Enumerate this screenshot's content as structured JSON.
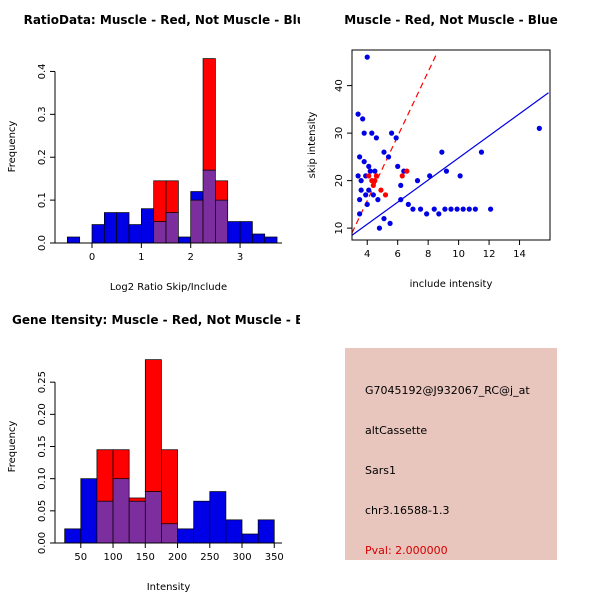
{
  "colors": {
    "blue": "#0000E6",
    "red": "#FF0000",
    "overlap": "#7D2E9E",
    "panel_bg": "#E8C5BD",
    "pval_text": "#D40000",
    "axis": "#000000",
    "background": "#FFFFFF"
  },
  "chart_data": [
    {
      "id": "ratio_hist",
      "type": "bar",
      "title": "RatioData: Muscle - Red, Not Muscle - Blue",
      "xlabel": "Log2 Ratio Skip/Include",
      "ylabel": "Frequency",
      "bin_start": -0.5,
      "bin_width": 0.25,
      "xlim": [
        -0.75,
        3.85
      ],
      "ylim": [
        0,
        0.45
      ],
      "xticks": [
        0,
        1,
        2,
        3
      ],
      "xticklabels": [
        "0",
        "1",
        "2",
        "3"
      ],
      "yticks": [
        0.0,
        0.1,
        0.2,
        0.3,
        0.4
      ],
      "yticklabels": [
        "0.0",
        "0.1",
        "0.2",
        "0.3",
        "0.4"
      ],
      "grid": false,
      "series": [
        {
          "name": "Not Muscle (blue)",
          "values": [
            0.014,
            0,
            0.043,
            0.071,
            0.071,
            0.043,
            0.08,
            0.05,
            0.071,
            0.014,
            0.12,
            0.17,
            0.1,
            0.05,
            0.05,
            0.021,
            0.014
          ]
        },
        {
          "name": "Muscle (red)",
          "values": [
            0,
            0,
            0,
            0,
            0,
            0,
            0,
            0.145,
            0.145,
            0,
            0.1,
            0.43,
            0.145,
            0,
            0,
            0,
            0
          ]
        }
      ]
    },
    {
      "id": "intensity_scatter",
      "type": "scatter",
      "title": "Muscle - Red, Not Muscle - Blue",
      "xlabel": "include intensity",
      "ylabel": "skip intensity",
      "xlim": [
        3.0,
        16.0
      ],
      "ylim": [
        7.5,
        47.5
      ],
      "xticks": [
        4,
        6,
        8,
        10,
        12,
        14
      ],
      "xticklabels": [
        "4",
        "6",
        "8",
        "10",
        "12",
        "14"
      ],
      "yticks": [
        10,
        20,
        30,
        40
      ],
      "yticklabels": [
        "10",
        "20",
        "30",
        "40"
      ],
      "grid": false,
      "series": [
        {
          "name": "Not Muscle (blue)",
          "points": [
            [
              3.4,
              34
            ],
            [
              3.7,
              33
            ],
            [
              4.0,
              46
            ],
            [
              3.8,
              30
            ],
            [
              4.3,
              30
            ],
            [
              4.6,
              29
            ],
            [
              5.6,
              30
            ],
            [
              5.9,
              29
            ],
            [
              3.5,
              25
            ],
            [
              3.8,
              24
            ],
            [
              4.1,
              23
            ],
            [
              5.1,
              26
            ],
            [
              5.4,
              25
            ],
            [
              3.4,
              21
            ],
            [
              3.6,
              20
            ],
            [
              3.9,
              21
            ],
            [
              4.2,
              22
            ],
            [
              4.5,
              22
            ],
            [
              3.6,
              18
            ],
            [
              3.9,
              17
            ],
            [
              4.1,
              18
            ],
            [
              4.4,
              17
            ],
            [
              4.7,
              16
            ],
            [
              3.5,
              16
            ],
            [
              4.0,
              15
            ],
            [
              3.5,
              13
            ],
            [
              4.8,
              10
            ],
            [
              5.1,
              12
            ],
            [
              5.5,
              11
            ],
            [
              6.0,
              23
            ],
            [
              6.4,
              22
            ],
            [
              6.2,
              19
            ],
            [
              6.2,
              16
            ],
            [
              6.7,
              15
            ],
            [
              7.0,
              14
            ],
            [
              7.3,
              20
            ],
            [
              7.5,
              14
            ],
            [
              7.9,
              13
            ],
            [
              8.1,
              21
            ],
            [
              8.4,
              14
            ],
            [
              8.7,
              13
            ],
            [
              8.9,
              26
            ],
            [
              9.1,
              14
            ],
            [
              9.2,
              22
            ],
            [
              9.5,
              14
            ],
            [
              9.9,
              14
            ],
            [
              10.1,
              21
            ],
            [
              10.3,
              14
            ],
            [
              10.7,
              14
            ],
            [
              11.1,
              14
            ],
            [
              11.5,
              26
            ],
            [
              12.1,
              14
            ],
            [
              15.3,
              31
            ]
          ]
        },
        {
          "name": "Muscle (red)",
          "points": [
            [
              4.1,
              21
            ],
            [
              4.3,
              20
            ],
            [
              4.4,
              19
            ],
            [
              4.6,
              21
            ],
            [
              4.5,
              20
            ],
            [
              4.9,
              18
            ],
            [
              5.2,
              17
            ],
            [
              6.3,
              21
            ],
            [
              6.6,
              22
            ]
          ]
        }
      ],
      "lines": [
        {
          "name": "muscle-fit-line",
          "color": "red",
          "dash": true,
          "x1": 3.0,
          "y1": 9.0,
          "x2": 8.6,
          "y2": 47.0
        },
        {
          "name": "notmuscle-fit-line",
          "color": "blue",
          "dash": false,
          "x1": 3.0,
          "y1": 8.5,
          "x2": 15.9,
          "y2": 38.5
        }
      ]
    },
    {
      "id": "gene_hist",
      "type": "bar",
      "title": "Gene Itensity: Muscle - Red, Not Muscle - Blue",
      "xlabel": "Intensity",
      "ylabel": "Frequency",
      "bin_start": 25,
      "bin_width": 25,
      "xlim": [
        10,
        362
      ],
      "ylim": [
        0,
        0.3
      ],
      "xticks": [
        50,
        100,
        150,
        200,
        250,
        300,
        350
      ],
      "xticklabels": [
        "50",
        "100",
        "150",
        "200",
        "250",
        "300",
        "350"
      ],
      "yticks": [
        0.0,
        0.05,
        0.1,
        0.15,
        0.2,
        0.25
      ],
      "yticklabels": [
        "0.00",
        "0.05",
        "0.10",
        "0.15",
        "0.20",
        "0.25"
      ],
      "grid": false,
      "series": [
        {
          "name": "Not Muscle (blue)",
          "values": [
            0.022,
            0.1,
            0.065,
            0.1,
            0.065,
            0.08,
            0.03,
            0.022,
            0.065,
            0.08,
            0.036,
            0.014,
            0.036
          ]
        },
        {
          "name": "Muscle (red)",
          "values": [
            0,
            0,
            0.145,
            0.145,
            0.07,
            0.285,
            0.145,
            0,
            0,
            0,
            0,
            0,
            0
          ]
        }
      ]
    }
  ],
  "info_panel": {
    "probe_id": "G7045192@J932067_RC@j_at",
    "event_type": "altCassette",
    "gene": "Sars1",
    "location": "chr3.16588-1.3",
    "pval": "Pval: 2.000000"
  }
}
